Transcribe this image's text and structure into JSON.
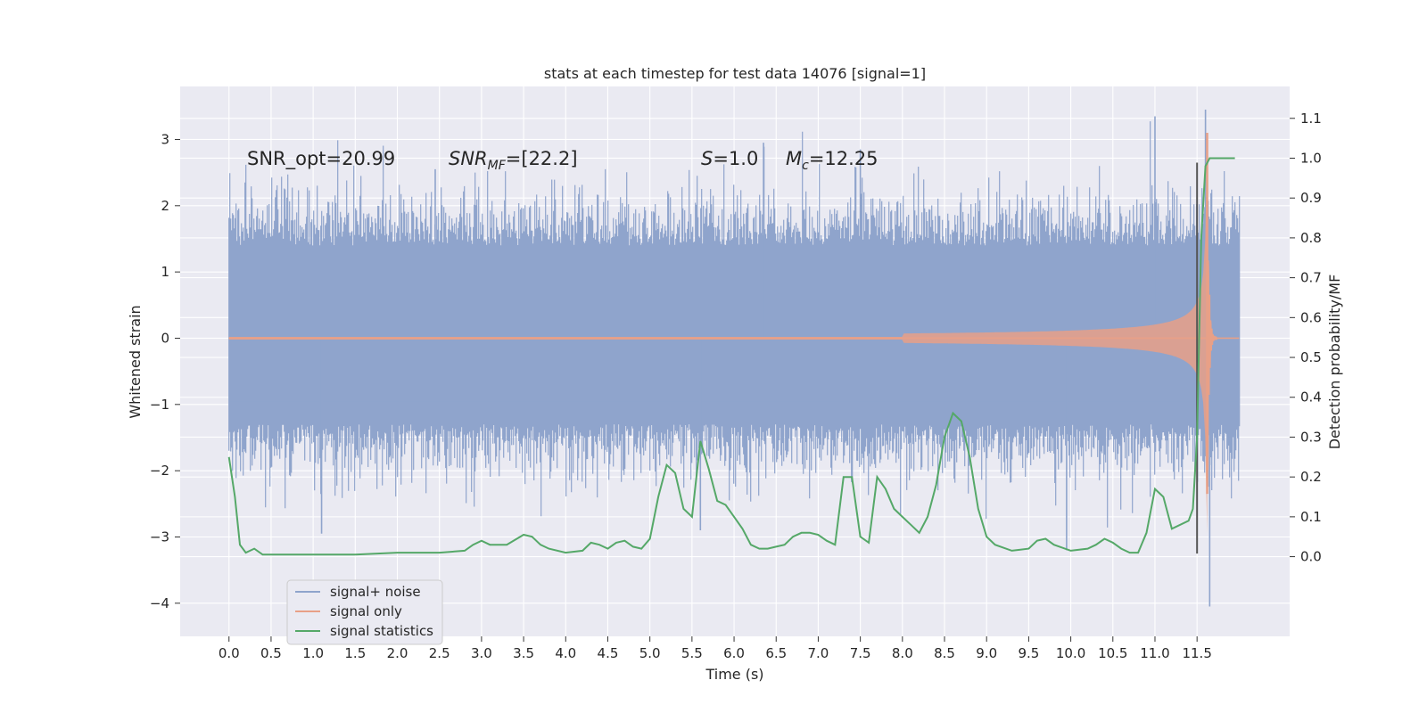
{
  "chart_data": {
    "type": "line",
    "title": "stats at each timestep for test data 14076 [signal=1]",
    "xlabel": "Time (s)",
    "ylabel": "Whitened strain",
    "ylabel_right": "Detection probability/MF",
    "xlim": [
      -0.58,
      12.6
    ],
    "ylim": [
      -4.5,
      3.8
    ],
    "ylim_right": [
      -0.2,
      1.18
    ],
    "x_ticks": [
      0.0,
      0.5,
      1.0,
      1.5,
      2.0,
      2.5,
      3.0,
      3.5,
      4.0,
      4.5,
      5.0,
      5.5,
      6.0,
      6.5,
      7.0,
      7.5,
      8.0,
      8.5,
      9.0,
      9.5,
      10.0,
      10.5,
      11.0,
      11.5
    ],
    "x_tick_labels": [
      "0.0",
      "0.5",
      "1.0",
      "1.5",
      "2.0",
      "2.5",
      "3.0",
      "3.5",
      "4.0",
      "4.5",
      "5.0",
      "5.5",
      "6.0",
      "6.5",
      "7.0",
      "7.5",
      "8.0",
      "8.5",
      "9.0",
      "9.5",
      "10.0",
      "10.5",
      "11.0",
      "11.5"
    ],
    "y_ticks": [
      3,
      2,
      1,
      0,
      -1,
      -2,
      -3,
      -4
    ],
    "y_tick_labels": [
      "3",
      "2",
      "1",
      "0",
      "−1",
      "−2",
      "−3",
      "−4"
    ],
    "y_right_ticks": [
      1.1,
      1.0,
      0.9,
      0.8,
      0.7,
      0.6,
      0.5,
      0.4,
      0.3,
      0.2,
      0.1,
      0.0
    ],
    "y_right_tick_labels": [
      "1.1",
      "1.0",
      "0.9",
      "0.8",
      "0.7",
      "0.6",
      "0.5",
      "0.4",
      "0.3",
      "0.2",
      "0.1",
      "0.0"
    ],
    "grid": true,
    "legend_position": "lower-left",
    "colors": {
      "plot_bg": "#eaeaf2",
      "grid": "#ffffff",
      "noise": "#8fa4cc",
      "signal": "#e8a087",
      "stats": "#55a868",
      "marker_line": "#555555"
    },
    "annotations": {
      "snr_opt": "SNR_opt=20.99",
      "snr_mf_base": "SNR",
      "snr_mf_sub": "MF",
      "snr_mf_value": "=[22.2]",
      "s_var": "S",
      "s_value": "=1.0",
      "mc_base": "M",
      "mc_sub": "c",
      "mc_value": "=12.25"
    },
    "series": [
      {
        "name": "signal+ noise",
        "axis": "left",
        "style": "dense_noise",
        "x_range": [
          0.0,
          12.0
        ],
        "core_band": [
          -1.3,
          1.4
        ],
        "notable_peaks": [
          [
            11.0,
            3.35
          ],
          [
            11.6,
            3.45
          ],
          [
            6.35,
            2.95
          ],
          [
            7.5,
            2.85
          ],
          [
            11.65,
            -4.05
          ],
          [
            1.1,
            -2.95
          ],
          [
            9.95,
            -3.2
          ],
          [
            5.6,
            -2.9
          ],
          [
            2.45,
            2.55
          ]
        ]
      },
      {
        "name": "signal only",
        "axis": "left",
        "style": "chirp",
        "x_range": [
          0.0,
          12.0
        ],
        "merger_time": 11.62,
        "peak_amplitude": 2.95
      },
      {
        "name": "signal statistics",
        "axis": "right",
        "style": "line",
        "x": [
          0.0,
          0.07,
          0.13,
          0.2,
          0.3,
          0.4,
          0.5,
          0.6,
          0.8,
          1.0,
          1.5,
          2.0,
          2.5,
          2.8,
          2.9,
          3.0,
          3.1,
          3.3,
          3.5,
          3.6,
          3.7,
          3.8,
          4.0,
          4.2,
          4.3,
          4.4,
          4.5,
          4.6,
          4.7,
          4.8,
          4.9,
          5.0,
          5.1,
          5.2,
          5.3,
          5.4,
          5.5,
          5.6,
          5.7,
          5.8,
          5.9,
          6.0,
          6.1,
          6.2,
          6.3,
          6.4,
          6.5,
          6.6,
          6.7,
          6.8,
          6.9,
          7.0,
          7.1,
          7.2,
          7.3,
          7.4,
          7.5,
          7.6,
          7.7,
          7.8,
          7.9,
          8.0,
          8.1,
          8.2,
          8.3,
          8.4,
          8.5,
          8.6,
          8.7,
          8.8,
          8.9,
          9.0,
          9.1,
          9.3,
          9.5,
          9.6,
          9.7,
          9.8,
          10.0,
          10.2,
          10.3,
          10.4,
          10.5,
          10.6,
          10.7,
          10.8,
          10.9,
          11.0,
          11.1,
          11.2,
          11.4,
          11.45,
          11.5,
          11.55,
          11.6,
          11.65,
          11.7,
          11.8,
          11.9,
          11.95
        ],
        "values": [
          0.25,
          0.15,
          0.03,
          0.01,
          0.02,
          0.005,
          0.005,
          0.005,
          0.005,
          0.005,
          0.005,
          0.01,
          0.01,
          0.015,
          0.03,
          0.04,
          0.03,
          0.03,
          0.055,
          0.05,
          0.03,
          0.02,
          0.01,
          0.015,
          0.035,
          0.03,
          0.02,
          0.035,
          0.04,
          0.025,
          0.02,
          0.045,
          0.15,
          0.23,
          0.21,
          0.12,
          0.1,
          0.29,
          0.22,
          0.14,
          0.13,
          0.1,
          0.07,
          0.03,
          0.02,
          0.02,
          0.025,
          0.03,
          0.05,
          0.06,
          0.06,
          0.055,
          0.04,
          0.03,
          0.2,
          0.2,
          0.05,
          0.035,
          0.2,
          0.17,
          0.12,
          0.1,
          0.08,
          0.06,
          0.1,
          0.18,
          0.3,
          0.36,
          0.34,
          0.25,
          0.12,
          0.05,
          0.03,
          0.015,
          0.02,
          0.04,
          0.045,
          0.03,
          0.015,
          0.02,
          0.03,
          0.045,
          0.035,
          0.02,
          0.01,
          0.01,
          0.06,
          0.17,
          0.15,
          0.07,
          0.09,
          0.12,
          0.3,
          0.8,
          0.98,
          1.0,
          1.0,
          1.0,
          1.0,
          1.0
        ]
      }
    ],
    "marker_line_x": 11.5
  }
}
